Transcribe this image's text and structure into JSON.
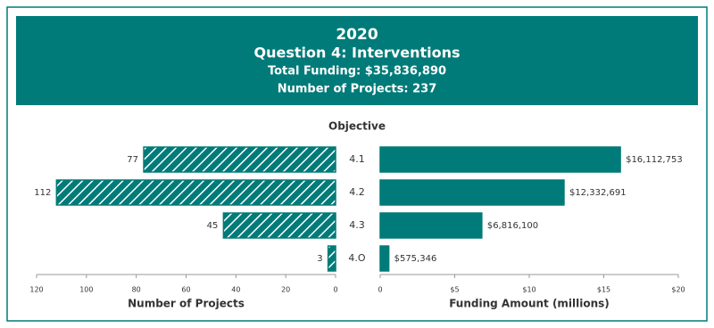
{
  "chart_data": {
    "type": "bar",
    "title": "2020",
    "subtitle": "Question 4: Interventions",
    "notes": [
      "Total Funding: $35,836,890",
      "Number of Projects: 237"
    ],
    "category_axis_label": "Objective",
    "categories": [
      "4.1",
      "4.2",
      "4.3",
      "4.O"
    ],
    "panels": [
      {
        "xlabel": "Number of Projects",
        "values": [
          77,
          112,
          45,
          3
        ],
        "color": "#007b79",
        "pattern": "hatch",
        "reversed": true,
        "xlim": [
          0,
          120
        ],
        "xticks": [
          0,
          20,
          40,
          60,
          80,
          100,
          120
        ]
      },
      {
        "xlabel": "Funding Amount (millions)",
        "values": [
          16.112753,
          12.332691,
          6.8161,
          0.575346
        ],
        "value_labels": [
          "$16,112,753",
          "$12,332,691",
          "$6,816,100",
          "$575,346"
        ],
        "color": "#007b79",
        "pattern": "solid",
        "reversed": false,
        "xlim": [
          0,
          20
        ],
        "xticks": [
          0,
          {
            "value": 5,
            "label": "$5"
          },
          {
            "value": 10,
            "label": "$10"
          },
          {
            "value": 15,
            "label": "$15"
          },
          {
            "value": 20,
            "label": "$20"
          }
        ]
      }
    ]
  }
}
